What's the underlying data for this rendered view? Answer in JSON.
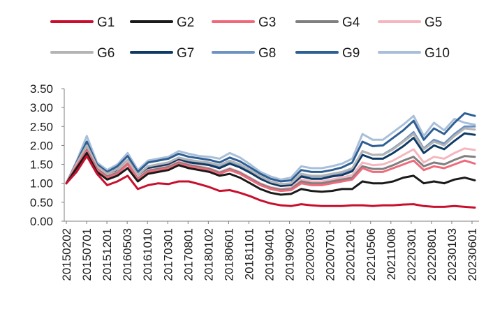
{
  "chart_data": {
    "type": "line",
    "title": "",
    "xlabel": "",
    "ylabel": "",
    "ylim": [
      0,
      3.5
    ],
    "y_ticks": [
      "0.00",
      "0.50",
      "1.00",
      "1.50",
      "2.00",
      "2.50",
      "3.00",
      "3.50"
    ],
    "grid": false,
    "legend_position": "top",
    "x_ticks": [
      "20150202",
      "20150701",
      "20151201",
      "20160503",
      "20161010",
      "20170301",
      "20170801",
      "20180102",
      "20180601",
      "20181101",
      "20190401",
      "20190902",
      "20200203",
      "20200701",
      "20201201",
      "20210506",
      "20211008",
      "20220301",
      "20220801",
      "20230103",
      "20230601"
    ],
    "series": [
      {
        "name": "G1",
        "color": "#c8102e",
        "values": [
          1.0,
          1.3,
          1.72,
          1.25,
          0.95,
          1.05,
          1.2,
          0.85,
          0.95,
          1.0,
          0.98,
          1.05,
          1.05,
          0.98,
          0.9,
          0.8,
          0.82,
          0.75,
          0.66,
          0.55,
          0.47,
          0.42,
          0.4,
          0.45,
          0.42,
          0.4,
          0.4,
          0.4,
          0.42,
          0.42,
          0.4,
          0.42,
          0.42,
          0.44,
          0.45,
          0.4,
          0.38,
          0.38,
          0.4,
          0.38,
          0.36
        ]
      },
      {
        "name": "G2",
        "color": "#1a1a1a",
        "values": [
          1.0,
          1.4,
          1.8,
          1.3,
          1.1,
          1.2,
          1.4,
          1.05,
          1.25,
          1.3,
          1.35,
          1.48,
          1.4,
          1.35,
          1.3,
          1.2,
          1.25,
          1.15,
          1.0,
          0.85,
          0.75,
          0.7,
          0.72,
          0.85,
          0.8,
          0.78,
          0.8,
          0.85,
          0.85,
          1.05,
          1.0,
          1.0,
          1.05,
          1.15,
          1.2,
          1.0,
          1.05,
          1.0,
          1.1,
          1.15,
          1.08
        ]
      },
      {
        "name": "G3",
        "color": "#ee6a7b",
        "values": [
          1.0,
          1.45,
          1.85,
          1.35,
          1.15,
          1.25,
          1.5,
          1.1,
          1.3,
          1.35,
          1.4,
          1.52,
          1.45,
          1.4,
          1.35,
          1.25,
          1.35,
          1.25,
          1.1,
          0.95,
          0.85,
          0.8,
          0.82,
          1.0,
          0.95,
          0.95,
          1.0,
          1.05,
          1.1,
          1.4,
          1.3,
          1.3,
          1.4,
          1.5,
          1.6,
          1.35,
          1.45,
          1.4,
          1.5,
          1.6,
          1.52
        ]
      },
      {
        "name": "G4",
        "color": "#7f7f7f",
        "values": [
          1.0,
          1.45,
          1.88,
          1.38,
          1.18,
          1.28,
          1.52,
          1.12,
          1.33,
          1.38,
          1.43,
          1.55,
          1.48,
          1.43,
          1.38,
          1.28,
          1.38,
          1.28,
          1.13,
          0.98,
          0.88,
          0.83,
          0.85,
          1.05,
          1.0,
          1.0,
          1.05,
          1.1,
          1.15,
          1.45,
          1.38,
          1.38,
          1.48,
          1.6,
          1.7,
          1.45,
          1.55,
          1.5,
          1.62,
          1.72,
          1.7
        ]
      },
      {
        "name": "G5",
        "color": "#f4b6bf",
        "values": [
          1.0,
          1.48,
          1.9,
          1.4,
          1.2,
          1.3,
          1.55,
          1.15,
          1.35,
          1.4,
          1.45,
          1.58,
          1.5,
          1.45,
          1.4,
          1.3,
          1.4,
          1.3,
          1.15,
          1.0,
          0.9,
          0.85,
          0.88,
          1.1,
          1.05,
          1.05,
          1.1,
          1.15,
          1.22,
          1.55,
          1.48,
          1.5,
          1.6,
          1.75,
          1.9,
          1.55,
          1.7,
          1.65,
          1.8,
          1.92,
          1.88
        ]
      },
      {
        "name": "G6",
        "color": "#b4b4b4",
        "values": [
          1.0,
          1.52,
          2.0,
          1.45,
          1.25,
          1.38,
          1.62,
          1.22,
          1.45,
          1.5,
          1.55,
          1.68,
          1.62,
          1.58,
          1.55,
          1.48,
          1.6,
          1.5,
          1.35,
          1.18,
          1.05,
          0.98,
          1.0,
          1.25,
          1.2,
          1.2,
          1.25,
          1.3,
          1.4,
          1.85,
          1.75,
          1.75,
          1.9,
          2.1,
          2.3,
          1.9,
          2.1,
          2.0,
          2.25,
          2.45,
          2.42
        ]
      },
      {
        "name": "G7",
        "color": "#0f3a66",
        "values": [
          1.0,
          1.5,
          1.95,
          1.42,
          1.22,
          1.35,
          1.58,
          1.2,
          1.4,
          1.45,
          1.5,
          1.62,
          1.55,
          1.52,
          1.48,
          1.4,
          1.52,
          1.42,
          1.28,
          1.12,
          1.0,
          0.93,
          0.95,
          1.18,
          1.12,
          1.12,
          1.18,
          1.22,
          1.32,
          1.75,
          1.65,
          1.65,
          1.8,
          1.98,
          2.2,
          1.8,
          2.0,
          1.9,
          2.12,
          2.32,
          2.28
        ]
      },
      {
        "name": "G8",
        "color": "#6f93c0",
        "values": [
          1.0,
          1.52,
          2.0,
          1.45,
          1.25,
          1.38,
          1.62,
          1.22,
          1.45,
          1.5,
          1.55,
          1.68,
          1.6,
          1.56,
          1.52,
          1.45,
          1.58,
          1.48,
          1.32,
          1.15,
          1.03,
          0.96,
          0.98,
          1.22,
          1.18,
          1.18,
          1.22,
          1.28,
          1.38,
          1.85,
          1.75,
          1.76,
          1.92,
          2.12,
          2.35,
          1.92,
          2.15,
          2.05,
          2.3,
          2.5,
          2.5
        ]
      },
      {
        "name": "G9",
        "color": "#2e5f94",
        "values": [
          1.0,
          1.55,
          2.1,
          1.5,
          1.3,
          1.45,
          1.72,
          1.3,
          1.55,
          1.6,
          1.65,
          1.78,
          1.7,
          1.66,
          1.62,
          1.55,
          1.68,
          1.58,
          1.42,
          1.25,
          1.12,
          1.05,
          1.08,
          1.35,
          1.3,
          1.3,
          1.35,
          1.42,
          1.55,
          2.1,
          1.98,
          2.0,
          2.2,
          2.4,
          2.65,
          2.15,
          2.45,
          2.3,
          2.6,
          2.85,
          2.78
        ]
      },
      {
        "name": "G10",
        "color": "#a9bfd9",
        "values": [
          1.0,
          1.58,
          2.25,
          1.55,
          1.35,
          1.5,
          1.8,
          1.35,
          1.6,
          1.65,
          1.7,
          1.85,
          1.78,
          1.72,
          1.7,
          1.65,
          1.8,
          1.68,
          1.5,
          1.3,
          1.18,
          1.1,
          1.15,
          1.45,
          1.4,
          1.4,
          1.45,
          1.52,
          1.65,
          2.3,
          2.15,
          2.15,
          2.35,
          2.55,
          2.78,
          2.25,
          2.6,
          2.4,
          2.7,
          2.6,
          2.55
        ]
      }
    ]
  }
}
